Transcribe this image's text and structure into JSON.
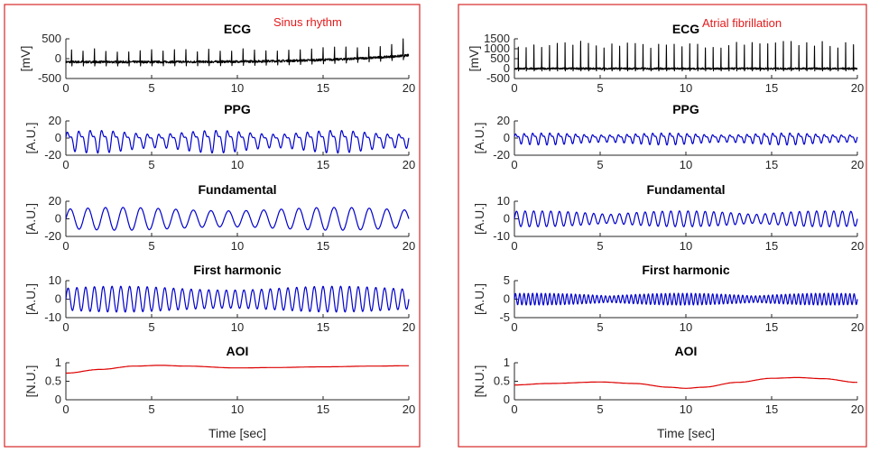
{
  "colors": {
    "frame": "#d62728",
    "ecg": "#000000",
    "ppg": "#0000cc",
    "aoi": "#dd0000",
    "annotation": "#e41a1c"
  },
  "panels": [
    {
      "annotation": "Sinus rhythm",
      "x_axis_label": "Time [sec]",
      "subplots": [
        {
          "title": "ECG",
          "ylabel": "[mV]",
          "yticks": [
            "500",
            "0",
            "-500"
          ]
        },
        {
          "title": "PPG",
          "ylabel": "[A.U.]",
          "yticks": [
            "20",
            "0",
            "-20"
          ]
        },
        {
          "title": "Fundamental",
          "ylabel": "[A.U.]",
          "yticks": [
            "20",
            "0",
            "-20"
          ]
        },
        {
          "title": "First harmonic",
          "ylabel": "[A.U.]",
          "yticks": [
            "10",
            "0",
            "-10"
          ]
        },
        {
          "title": "AOI",
          "ylabel": "[N.U.]",
          "yticks": [
            "1",
            "0.5",
            "0"
          ]
        }
      ],
      "xticks": [
        "0",
        "5",
        "10",
        "15",
        "20"
      ]
    },
    {
      "annotation": "Atrial fibrillation",
      "x_axis_label": "Time [sec]",
      "subplots": [
        {
          "title": "ECG",
          "ylabel": "[mV]",
          "yticks": [
            "1500",
            "1000",
            "500",
            "0",
            "-500"
          ]
        },
        {
          "title": "PPG",
          "ylabel": "[A.U.]",
          "yticks": [
            "20",
            "0",
            "-20"
          ]
        },
        {
          "title": "Fundamental",
          "ylabel": "[A.U.]",
          "yticks": [
            "10",
            "0",
            "-10"
          ]
        },
        {
          "title": "First harmonic",
          "ylabel": "[A.U.]",
          "yticks": [
            "5",
            "0",
            "-5"
          ]
        },
        {
          "title": "AOI",
          "ylabel": "[N.U.]",
          "yticks": [
            "1",
            "0.5",
            "0"
          ]
        }
      ],
      "xticks": [
        "0",
        "5",
        "10",
        "15",
        "20"
      ]
    }
  ],
  "chart_data": [
    {
      "type": "line",
      "panel": "Sinus rhythm",
      "title": "ECG",
      "ylabel": "[mV]",
      "xlim": [
        0,
        20
      ],
      "ylim": [
        -500,
        700
      ],
      "series": [
        {
          "kind": "ecg",
          "beats": 30,
          "peak": 350,
          "baseline_start": 0,
          "baseline_end": 200,
          "final_peak": 600
        }
      ]
    },
    {
      "type": "line",
      "panel": "Sinus rhythm",
      "title": "PPG",
      "ylabel": "[A.U.]",
      "xlim": [
        0,
        20
      ],
      "ylim": [
        -20,
        25
      ],
      "series": [
        {
          "kind": "ppg",
          "cycles": 30,
          "amplitude": 17
        }
      ]
    },
    {
      "type": "line",
      "panel": "Sinus rhythm",
      "title": "Fundamental",
      "ylabel": "[A.U.]",
      "xlim": [
        0,
        20
      ],
      "ylim": [
        -20,
        20
      ],
      "series": [
        {
          "kind": "sine",
          "cycles": 19.5,
          "amplitude": 13
        }
      ]
    },
    {
      "type": "line",
      "panel": "Sinus rhythm",
      "title": "First harmonic",
      "ylabel": "[A.U.]",
      "xlim": [
        0,
        20
      ],
      "ylim": [
        -10,
        10
      ],
      "series": [
        {
          "kind": "sine",
          "cycles": 39,
          "amplitude": 7
        }
      ]
    },
    {
      "type": "line",
      "panel": "Sinus rhythm",
      "title": "AOI",
      "ylabel": "[N.U.]",
      "xlim": [
        0,
        20
      ],
      "ylim": [
        0,
        1
      ],
      "series": [
        {
          "kind": "points",
          "x": [
            0,
            2,
            4,
            5.5,
            7,
            10,
            12,
            15,
            18,
            20
          ],
          "y": [
            0.72,
            0.82,
            0.91,
            0.93,
            0.91,
            0.86,
            0.87,
            0.89,
            0.91,
            0.92
          ]
        }
      ]
    },
    {
      "type": "line",
      "panel": "Atrial fibrillation",
      "title": "ECG",
      "ylabel": "[mV]",
      "xlim": [
        0,
        20
      ],
      "ylim": [
        -500,
        1500
      ],
      "series": [
        {
          "kind": "ecg",
          "beats": 44,
          "peak": 1200,
          "baseline_start": 0,
          "baseline_end": 0,
          "final_peak": 1200
        }
      ]
    },
    {
      "type": "line",
      "panel": "Atrial fibrillation",
      "title": "PPG",
      "ylabel": "[A.U.]",
      "xlim": [
        0,
        20
      ],
      "ylim": [
        -20,
        20
      ],
      "series": [
        {
          "kind": "ppg",
          "cycles": 40,
          "amplitude": 8
        }
      ]
    },
    {
      "type": "line",
      "panel": "Atrial fibrillation",
      "title": "Fundamental",
      "ylabel": "[A.U.]",
      "xlim": [
        0,
        20
      ],
      "ylim": [
        -10,
        10
      ],
      "series": [
        {
          "kind": "sine",
          "cycles": 40,
          "amplitude": 4.5
        }
      ]
    },
    {
      "type": "line",
      "panel": "Atrial fibrillation",
      "title": "First harmonic",
      "ylabel": "[A.U.]",
      "xlim": [
        0,
        20
      ],
      "ylim": [
        -5,
        5
      ],
      "series": [
        {
          "kind": "sine",
          "cycles": 80,
          "amplitude": 1.6
        }
      ]
    },
    {
      "type": "line",
      "panel": "Atrial fibrillation",
      "title": "AOI",
      "ylabel": "[N.U.]",
      "xlim": [
        0,
        20
      ],
      "ylim": [
        0,
        1
      ],
      "series": [
        {
          "kind": "points",
          "x": [
            0,
            2,
            5,
            7,
            9,
            10,
            11,
            13,
            15,
            16.5,
            18,
            20
          ],
          "y": [
            0.4,
            0.44,
            0.48,
            0.44,
            0.34,
            0.31,
            0.34,
            0.47,
            0.58,
            0.6,
            0.57,
            0.47
          ]
        }
      ]
    }
  ]
}
